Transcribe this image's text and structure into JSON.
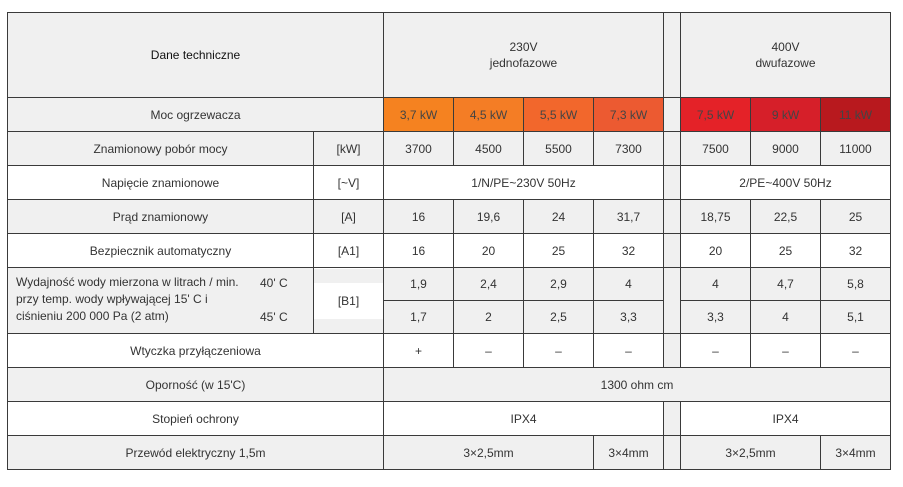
{
  "header": {
    "title": "Dane techniczne",
    "group_230_voltage": "230V",
    "group_230_phase": "jednofazowe",
    "group_400_voltage": "400V",
    "group_400_phase": "dwufazowe"
  },
  "colors": {
    "power_230": [
      "#f58220",
      "#f47d25",
      "#f2672c",
      "#ec5a31"
    ],
    "power_400": [
      "#e42228",
      "#d61f29",
      "#b8191e"
    ],
    "row_grey": "#f0f0f0",
    "border": "#3a3a3a"
  },
  "rows": {
    "moc": {
      "label": "Moc ogrzewacza",
      "values": [
        "3,7 kW",
        "4,5 kW",
        "5,5 kW",
        "7,3 kW",
        "7,5 kW",
        "9 kW",
        "11 kW"
      ]
    },
    "pobor": {
      "label": "Znamionowy pobór mocy",
      "unit": "[kW]",
      "values": [
        "3700",
        "4500",
        "5500",
        "7300",
        "7500",
        "9000",
        "11000"
      ]
    },
    "napiecie": {
      "label": "Napięcie znamionowe",
      "unit": "[~V]",
      "value_230": "1/N/PE~230V 50Hz",
      "value_400": "2/PE~400V 50Hz"
    },
    "prad": {
      "label": "Prąd znamionowy",
      "unit": "[A]",
      "values": [
        "16",
        "19,6",
        "24",
        "31,7",
        "18,75",
        "22,5",
        "25"
      ]
    },
    "bezpiecznik": {
      "label": "Bezpiecznik automatyczny",
      "unit": "[A1]",
      "values": [
        "16",
        "20",
        "25",
        "32",
        "20",
        "25",
        "32"
      ]
    },
    "wydajnosc": {
      "label_line1": "Wydajność wody mierzona w litrach / min.",
      "label_line2": "przy temp. wody wpływającej 15' C i",
      "label_line3": "ciśnieniu 200 000 Pa (2 atm)",
      "temp_1": "40' C",
      "temp_2": "45' C",
      "unit": "[B1]",
      "values_40": [
        "1,9",
        "2,4",
        "2,9",
        "4",
        "4",
        "4,7",
        "5,8"
      ],
      "values_45": [
        "1,7",
        "2",
        "2,5",
        "3,3",
        "3,3",
        "4",
        "5,1"
      ]
    },
    "wtyczka": {
      "label": "Wtyczka przyłączeniowa",
      "values": [
        "+",
        "–",
        "–",
        "–",
        "–",
        "–",
        "–"
      ]
    },
    "opornosc": {
      "label": "Oporność (w 15'C)",
      "value": "1300 ohm cm"
    },
    "stopien": {
      "label": "Stopień ochrony",
      "value_230": "IPX4",
      "value_400": "IPX4"
    },
    "przewod": {
      "label": "Przewód elektryczny 1,5m",
      "value_230_a": "3×2,5mm",
      "value_230_b": "3×4mm",
      "value_400_a": "3×2,5mm",
      "value_400_b": "3×4mm"
    }
  }
}
